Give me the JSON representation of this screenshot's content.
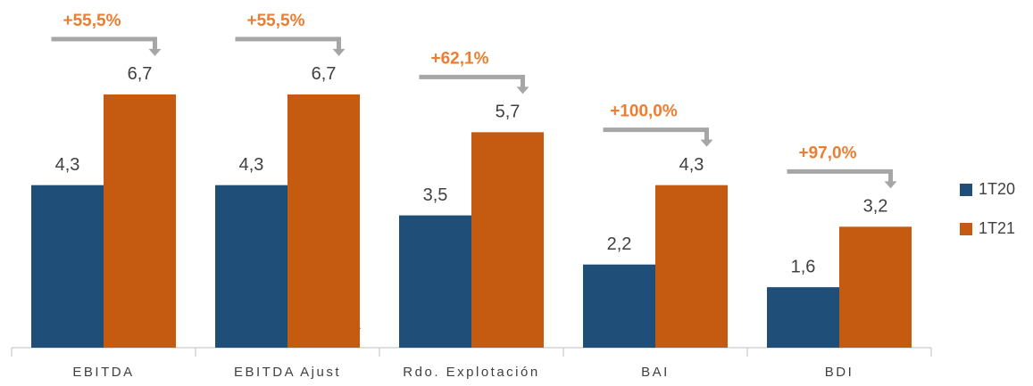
{
  "chart_data": {
    "type": "bar",
    "categories": [
      "EBITDA",
      "EBITDA Ajust",
      "Rdo. Explotación",
      "BAI",
      "BDI"
    ],
    "series": [
      {
        "name": "1T20",
        "color": "#1f4e79",
        "values": [
          4.3,
          4.3,
          3.5,
          2.2,
          1.6
        ],
        "value_labels": [
          "4,3",
          "4,3",
          "3,5",
          "2,2",
          "1,6"
        ]
      },
      {
        "name": "1T21",
        "color": "#c55a11",
        "values": [
          6.7,
          6.7,
          5.7,
          4.3,
          3.2
        ],
        "value_labels": [
          "6,7",
          "6,7",
          "5,7",
          "4,3",
          "3,2"
        ]
      }
    ],
    "annotations": [
      "+55,5%",
      "+55,5%",
      "+62,1%",
      "+100,0%",
      "+97,0%"
    ],
    "footnote_mark": "*",
    "legend": "right"
  }
}
